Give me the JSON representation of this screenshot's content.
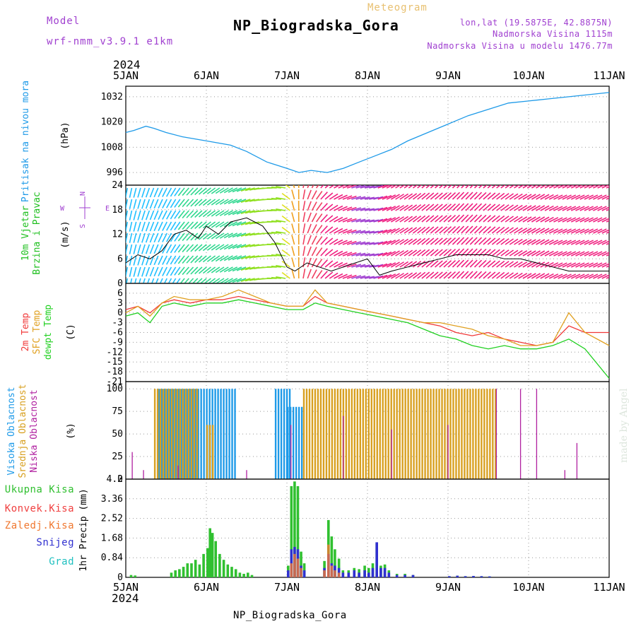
{
  "header": {
    "model_label": "Model",
    "model_name": "wrf-nmm_v3.9.1 e1km",
    "meteogram_label": "Meteogram",
    "title": "NP_Biogradska_Gora",
    "lonlat": "lon,lat (19.5875E, 42.8875N)",
    "altitude": "Nadmorska Visina 1115m",
    "model_altitude": "Nadmorska Visina u modelu 1476.77m",
    "footer_title": "NP_Biogradska_Gora",
    "signature": "made by Angel",
    "year_top": "2024",
    "year_bottom": "2024"
  },
  "colors": {
    "purple": "#a040d0",
    "orange_light": "#e8c070",
    "pressure": "#1e9ae8",
    "temp2m": "#f03838",
    "sfc": "#e0a020",
    "dewpt": "#20d020",
    "cloud_high": "#1e9ae8",
    "cloud_mid": "#d8a020",
    "cloud_low": "#b020a0",
    "precip_total": "#30c030",
    "precip_conv": "#f04040",
    "precip_frz": "#f07830",
    "precip_snow": "#3030d0",
    "precip_hail": "#20c0c0"
  },
  "chart_data": [
    {
      "id": "pressure",
      "type": "line",
      "ylabel": "Pritisak na nivou mora",
      "unit": "(hPa)",
      "ylim": [
        990,
        1037
      ],
      "yticks": [
        996,
        1008,
        1020,
        1032
      ],
      "x_categories": [
        "5JAN",
        "6JAN",
        "7JAN",
        "8JAN",
        "9JAN",
        "10JAN",
        "11JAN"
      ],
      "x": [
        0,
        0.1,
        0.25,
        0.35,
        0.5,
        0.7,
        1.0,
        1.3,
        1.5,
        1.75,
        2.0,
        2.15,
        2.3,
        2.5,
        2.7,
        2.9,
        3.1,
        3.3,
        3.5,
        3.75,
        4.0,
        4.25,
        4.5,
        4.75,
        5.0,
        5.25,
        5.5,
        5.75,
        6.0
      ],
      "values": [
        1015,
        1016,
        1018,
        1017,
        1015,
        1013,
        1011,
        1009,
        1006,
        1001,
        998,
        996,
        997,
        996,
        998,
        1001,
        1004,
        1007,
        1011,
        1015,
        1019,
        1023,
        1026,
        1029,
        1030,
        1031,
        1032,
        1033,
        1034
      ]
    },
    {
      "id": "wind",
      "type": "line",
      "ylabel": "10m Vjetar Brzina i Pravac",
      "unit": "(m/s)",
      "ylim": [
        0,
        24
      ],
      "yticks": [
        0,
        6,
        12,
        18,
        24
      ],
      "legend_compass": [
        "S",
        "E",
        "N",
        "W"
      ],
      "x": [
        0,
        0.15,
        0.3,
        0.45,
        0.6,
        0.75,
        0.9,
        1.0,
        1.15,
        1.3,
        1.5,
        1.7,
        1.85,
        2.0,
        2.1,
        2.25,
        2.4,
        2.55,
        2.7,
        2.85,
        3.0,
        3.15,
        3.3,
        3.5,
        3.7,
        3.9,
        4.1,
        4.3,
        4.5,
        4.7,
        4.9,
        5.1,
        5.3,
        5.5,
        5.7,
        6.0
      ],
      "values": [
        5,
        7,
        6,
        8,
        12,
        13,
        11,
        14,
        12,
        15,
        16,
        14,
        10,
        4,
        3,
        5,
        4,
        3,
        4,
        5,
        6,
        2,
        3,
        4,
        5,
        6,
        7,
        7,
        7,
        6,
        6,
        5,
        4,
        3,
        3,
        3
      ],
      "arrow_direction_deg": [
        10,
        15,
        20,
        25,
        30,
        40,
        45,
        50,
        55,
        60,
        70,
        80,
        90,
        100,
        170,
        200,
        220,
        240,
        250,
        255,
        260,
        250,
        240,
        235,
        230,
        230,
        225,
        225,
        230,
        235,
        240,
        240,
        245,
        245,
        245,
        245
      ]
    },
    {
      "id": "temperature",
      "type": "line",
      "ylabel": [
        "2m Temp",
        "SFC Temp",
        "dewpt Temp"
      ],
      "unit": "(C)",
      "ylim": [
        -21,
        9
      ],
      "yticks": [
        -21,
        -18,
        -15,
        -12,
        -9,
        -6,
        -3,
        0,
        3,
        6
      ],
      "x": [
        0,
        0.15,
        0.3,
        0.45,
        0.6,
        0.8,
        1.0,
        1.2,
        1.4,
        1.6,
        1.8,
        2.0,
        2.2,
        2.35,
        2.5,
        2.7,
        2.9,
        3.1,
        3.3,
        3.5,
        3.7,
        3.9,
        4.1,
        4.3,
        4.5,
        4.7,
        4.9,
        5.1,
        5.3,
        5.5,
        5.7,
        6.0
      ],
      "series": [
        {
          "name": "2m Temp",
          "values": [
            1,
            2,
            0,
            3,
            4,
            3,
            4,
            4,
            5,
            4,
            3,
            2,
            2,
            5,
            3,
            2,
            1,
            0,
            -1,
            -2,
            -3,
            -4,
            -6,
            -7,
            -6,
            -8,
            -9,
            -10,
            -9,
            -4,
            -6,
            -6
          ]
        },
        {
          "name": "SFC Temp",
          "values": [
            0,
            2,
            -1,
            3,
            5,
            4,
            4,
            5,
            7,
            5,
            3,
            2,
            2,
            7,
            3,
            2,
            1,
            0,
            -1,
            -2,
            -3,
            -3,
            -4,
            -5,
            -7,
            -8,
            -10,
            -10,
            -9,
            0,
            -6,
            -10
          ]
        },
        {
          "name": "dewpt Temp",
          "values": [
            -1,
            0,
            -3,
            2,
            3,
            2,
            3,
            3,
            4,
            3,
            2,
            1,
            1,
            3,
            2,
            1,
            0,
            -1,
            -2,
            -3,
            -5,
            -7,
            -8,
            -10,
            -11,
            -10,
            -11,
            -11,
            -10,
            -8,
            -11,
            -20
          ]
        }
      ]
    },
    {
      "id": "cloud",
      "type": "bar",
      "ylabel": [
        "Visoka Oblacnost",
        "Srednja Oblacnost",
        "Niska Oblacnost"
      ],
      "unit": "(%)",
      "ylim": [
        0,
        100
      ],
      "yticks": [
        0,
        25,
        50,
        75,
        100
      ],
      "series": [
        {
          "name": "Visoka Oblacnost",
          "segments": [
            [
              0.4,
              1.35,
              100
            ],
            [
              1.85,
              2.05,
              100
            ],
            [
              2.0,
              2.2,
              80
            ]
          ]
        },
        {
          "name": "Srednja Oblacnost",
          "segments": [
            [
              0.35,
              0.9,
              100
            ],
            [
              2.2,
              4.6,
              100
            ],
            [
              1.0,
              1.1,
              60
            ]
          ]
        },
        {
          "name": "Niska Oblacnost",
          "spikes": [
            [
              0.08,
              30
            ],
            [
              0.22,
              10
            ],
            [
              0.65,
              15
            ],
            [
              1.5,
              10
            ],
            [
              2.05,
              60
            ],
            [
              2.7,
              70
            ],
            [
              3.3,
              55
            ],
            [
              4.0,
              60
            ],
            [
              4.6,
              100
            ],
            [
              4.9,
              100
            ],
            [
              5.1,
              100
            ],
            [
              5.6,
              40
            ],
            [
              5.45,
              10
            ]
          ]
        }
      ]
    },
    {
      "id": "precip",
      "type": "bar",
      "ylabel": "1hr Precip",
      "unit": "(mm)",
      "ylim": [
        0,
        4.2
      ],
      "yticks": [
        0,
        0.84,
        1.68,
        2.52,
        3.36,
        4.2
      ],
      "legend": [
        "Ukupna Kisa",
        "Konvek.Kisa",
        "Zaledj.Kisa",
        "Snijeg",
        "Grad"
      ],
      "bars": [
        [
          0.05,
          0.1,
          0,
          0
        ],
        [
          0.1,
          0.08,
          0,
          0
        ],
        [
          0.55,
          0.2,
          0,
          0
        ],
        [
          0.6,
          0.3,
          0,
          0
        ],
        [
          0.65,
          0.35,
          0,
          0
        ],
        [
          0.7,
          0.45,
          0,
          0
        ],
        [
          0.75,
          0.6,
          0,
          0
        ],
        [
          0.8,
          0.6,
          0,
          0
        ],
        [
          0.85,
          0.75,
          0,
          0
        ],
        [
          0.9,
          0.55,
          0,
          0
        ],
        [
          0.95,
          1.0,
          0,
          0
        ],
        [
          1.0,
          1.25,
          0,
          0
        ],
        [
          1.03,
          2.1,
          0,
          0
        ],
        [
          1.06,
          1.9,
          0,
          0
        ],
        [
          1.1,
          1.55,
          0,
          0
        ],
        [
          1.15,
          1.0,
          0,
          0
        ],
        [
          1.2,
          0.75,
          0,
          0
        ],
        [
          1.25,
          0.55,
          0,
          0
        ],
        [
          1.3,
          0.45,
          0,
          0
        ],
        [
          1.35,
          0.35,
          0,
          0
        ],
        [
          1.4,
          0.2,
          0,
          0
        ],
        [
          1.45,
          0.15,
          0,
          0
        ],
        [
          1.5,
          0.2,
          0,
          0
        ],
        [
          1.55,
          0.1,
          0,
          0
        ],
        [
          2.0,
          0.5,
          0,
          0.3
        ],
        [
          2.04,
          3.9,
          0.6,
          1.2
        ],
        [
          2.08,
          4.1,
          1.0,
          1.3
        ],
        [
          2.12,
          3.9,
          0.8,
          1.2
        ],
        [
          2.16,
          1.1,
          0.4,
          0.5
        ],
        [
          2.2,
          0.6,
          0,
          0.3
        ],
        [
          2.45,
          0.7,
          0.3,
          0.4
        ],
        [
          2.5,
          2.45,
          1.4,
          1.0
        ],
        [
          2.54,
          1.75,
          0.5,
          0.6
        ],
        [
          2.58,
          1.2,
          0.3,
          0.5
        ],
        [
          2.63,
          0.8,
          0.2,
          0.4
        ],
        [
          2.68,
          0.3,
          0,
          0.2
        ],
        [
          2.75,
          0.3,
          0,
          0.2
        ],
        [
          2.82,
          0.4,
          0,
          0.3
        ],
        [
          2.88,
          0.35,
          0,
          0.2
        ],
        [
          2.95,
          0.5,
          0,
          0.3
        ],
        [
          3.0,
          0.4,
          0,
          0.2
        ],
        [
          3.05,
          0.6,
          0,
          0.4
        ],
        [
          3.1,
          1.45,
          0,
          1.5
        ],
        [
          3.15,
          0.5,
          0,
          0.4
        ],
        [
          3.2,
          0.55,
          0,
          0.4
        ],
        [
          3.25,
          0.3,
          0,
          0.2
        ],
        [
          3.35,
          0.15,
          0,
          0.1
        ],
        [
          3.45,
          0.15,
          0,
          0.1
        ],
        [
          3.55,
          0.1,
          0,
          0.1
        ],
        [
          4.0,
          0.05,
          0,
          0.05
        ],
        [
          4.1,
          0.07,
          0,
          0.07
        ],
        [
          4.2,
          0.05,
          0,
          0.05
        ],
        [
          4.3,
          0.06,
          0,
          0.06
        ],
        [
          4.4,
          0.05,
          0,
          0.05
        ],
        [
          4.5,
          0.04,
          0,
          0.04
        ]
      ]
    }
  ]
}
